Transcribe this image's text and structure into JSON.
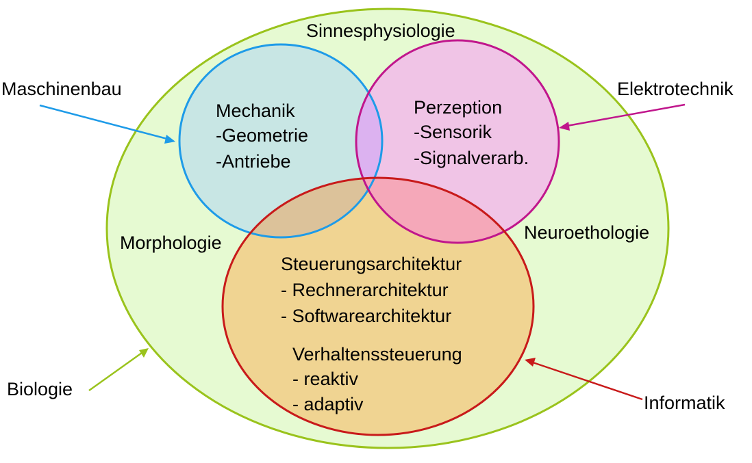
{
  "outer_labels": {
    "maschinenbau": "Maschinenbau",
    "elektrotechnik": "Elektrotechnik",
    "biologie": "Biologie",
    "informatik": "Informatik"
  },
  "region_labels": {
    "sinnesphysiologie": "Sinnesphysiologie",
    "morphologie": "Morphologie",
    "neuroethologie": "Neuroethologie"
  },
  "mechanik": {
    "title": "Mechanik",
    "items": [
      "-Geometrie",
      "-Antriebe"
    ]
  },
  "perzeption": {
    "title": "Perzeption",
    "items": [
      "-Sensorik",
      "-Signalverarb."
    ]
  },
  "steuerung": {
    "title": "Steuerungsarchitektur",
    "items": [
      "- Rechnerarchitektur",
      "- Softwarearchitektur"
    ]
  },
  "verhalten": {
    "title": "Verhaltenssteuerung",
    "items": [
      "- reaktiv",
      "- adaptiv"
    ]
  },
  "colors": {
    "biologie_fill": "#e6fad2",
    "biologie_stroke": "#9ac31c",
    "mechanik_fill": "#c8e6e4",
    "mechanik_stroke": "#1e9be8",
    "perzeption_fill": "#f0c4e6",
    "perzeption_stroke": "#c0168c",
    "informatik_fill": "#f0d492",
    "informatik_stroke": "#c81a1a",
    "overlap_mech_perz": "#dcb2f0",
    "overlap_mech_info": "#dcc29a",
    "overlap_perz_info": "#f5a8b9"
  }
}
